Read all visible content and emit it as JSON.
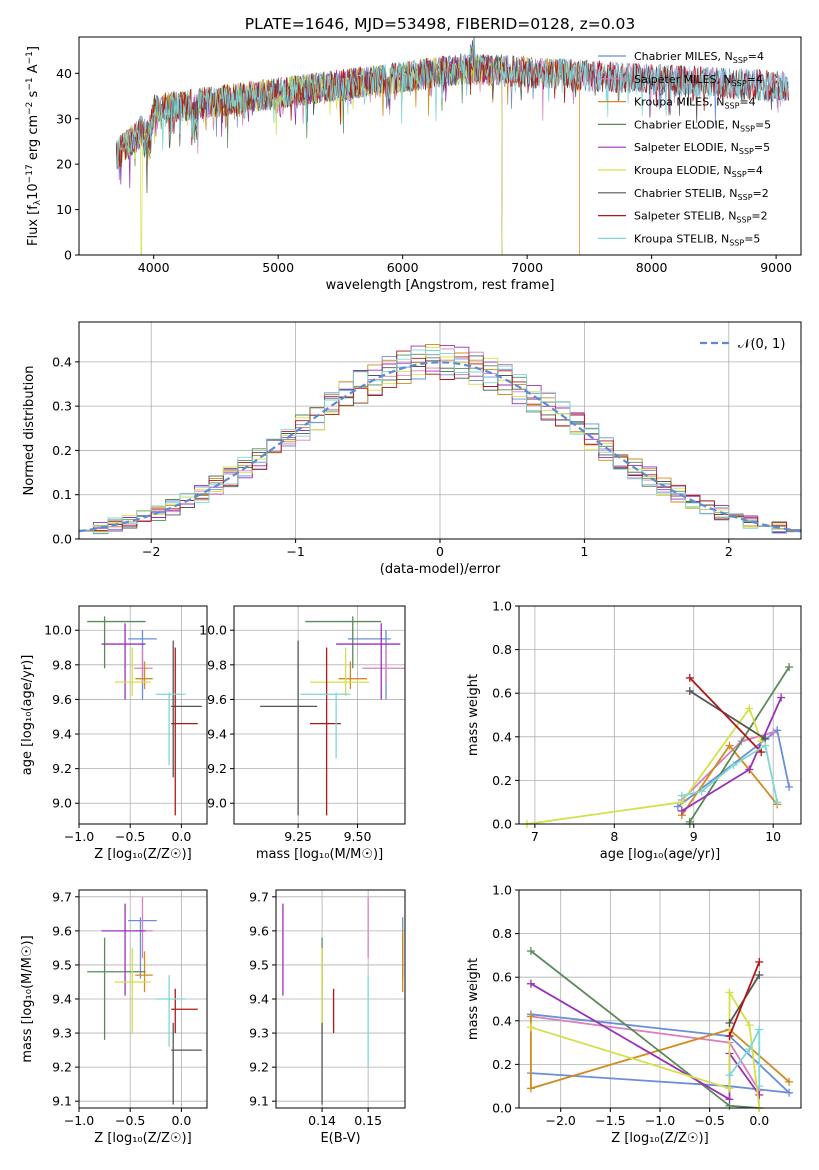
{
  "figure": {
    "title": "PLATE=1646, MJD=53498, FIBERID=0128, z=0.03"
  },
  "chart_data": [
    {
      "id": "spectrum",
      "type": "line",
      "xlabel": "wavelength [Angstrom, rest frame]",
      "ylabel_pre": "Flux [f",
      "ylabel_sub": "λ",
      "ylabel_mid": "10",
      "ylabel_sup1": "−17",
      "ylabel_mid2": " erg cm",
      "ylabel_sup2": "−2",
      "ylabel_mid3": " s",
      "ylabel_sup3": "−1",
      "ylabel_mid4": " A",
      "ylabel_sup4": "−1",
      "ylabel_end": "]",
      "xlim": [
        3400,
        9200
      ],
      "ylim": [
        0,
        48
      ],
      "xticks": [
        4000,
        5000,
        6000,
        7000,
        8000,
        9000
      ],
      "yticks": [
        0,
        10,
        20,
        30,
        40
      ],
      "wave_range": [
        3700,
        9100
      ],
      "legend_loc": "upper-right",
      "series": [
        {
          "name": "Chabrier MILES, N",
          "sub": "SSP",
          "eq": "=4",
          "color": "#6a8fd8",
          "end": 9100,
          "dropout": null
        },
        {
          "name": "Salpeter MILES, N",
          "sub": "SSP",
          "eq": "=4",
          "color": "#d97fbf",
          "end": 9100,
          "dropout": null
        },
        {
          "name": "Kroupa MILES, N",
          "sub": "SSP",
          "eq": "=4",
          "color": "#d38a1e",
          "end": 7420,
          "dropout": null
        },
        {
          "name": "Chabrier ELODIE, N",
          "sub": "SSP",
          "eq": "=5",
          "color": "#5a8a5a",
          "end": 6800,
          "dropout": null
        },
        {
          "name": "Salpeter ELODIE, N",
          "sub": "SSP",
          "eq": "=5",
          "color": "#9b30b8",
          "end": 6800,
          "dropout": null
        },
        {
          "name": "Kroupa ELODIE, N",
          "sub": "SSP",
          "eq": "=4",
          "color": "#d4e04a",
          "end": 6800,
          "dropout": 3900
        },
        {
          "name": "Chabrier STELIB, N",
          "sub": "SSP",
          "eq": "=2",
          "color": "#555555",
          "end": 9100,
          "dropout": null
        },
        {
          "name": "Salpeter STELIB, N",
          "sub": "SSP",
          "eq": "=2",
          "color": "#b01818",
          "end": 9100,
          "dropout": null
        },
        {
          "name": "Kroupa STELIB, N",
          "sub": "SSP",
          "eq": "=5",
          "color": "#7fd6d6",
          "end": 9100,
          "dropout": null
        }
      ]
    },
    {
      "id": "residuals",
      "type": "bar",
      "xlabel": "(data-model)/error",
      "ylabel": "Normed distribution",
      "xlim": [
        -2.5,
        2.5
      ],
      "ylim": [
        0,
        0.49
      ],
      "xticks": [
        -2,
        -1,
        0,
        1,
        2
      ],
      "yticks": [
        0.0,
        0.1,
        0.2,
        0.3,
        0.4
      ],
      "grid": true,
      "bin_width": 0.1,
      "reference_curve": {
        "name": "𝒩(0, 1)",
        "mean": 0,
        "sigma": 1,
        "color": "#5b8bd5",
        "style": "dashed"
      },
      "colors": [
        "#6a8fd8",
        "#d97fbf",
        "#d38a1e",
        "#5a8a5a",
        "#9b30b8",
        "#d4e04a",
        "#555555",
        "#b01818",
        "#7fd6d6"
      ]
    },
    {
      "id": "age-vs-Z",
      "type": "scatter",
      "xlabel": "Z [log₁₀(Z/Z☉)]",
      "ylabel": "age  [log₁₀(age/yr)]",
      "xlim": [
        -1.0,
        0.25
      ],
      "ylim": [
        8.88,
        10.14
      ],
      "xticks": [
        -1.0,
        -0.5,
        0.0
      ],
      "xticklabels": [
        "−1.0",
        "−0.5",
        "0.0"
      ],
      "yticks": [
        9.0,
        9.2,
        9.4,
        9.6,
        9.8,
        10.0
      ],
      "grid": true,
      "points": [
        {
          "color": "#6a8fd8",
          "x": -0.38,
          "y": 9.95,
          "x_lo": -0.52,
          "x_hi": -0.24,
          "y_lo": 9.6,
          "y_hi": 10.0
        },
        {
          "color": "#d97fbf",
          "x": -0.38,
          "y": 9.78,
          "x_lo": -0.46,
          "x_hi": -0.28,
          "y_lo": 9.7,
          "y_hi": 9.9
        },
        {
          "color": "#d38a1e",
          "x": -0.36,
          "y": 9.72,
          "x_lo": -0.45,
          "x_hi": -0.28,
          "y_lo": 9.66,
          "y_hi": 9.82
        },
        {
          "color": "#5a8a5a",
          "x": -0.75,
          "y": 10.05,
          "x_lo": -0.92,
          "x_hi": -0.35,
          "y_lo": 9.78,
          "y_hi": 10.08
        },
        {
          "color": "#9b30b8",
          "x": -0.55,
          "y": 9.92,
          "x_lo": -0.78,
          "x_hi": -0.35,
          "y_lo": 9.6,
          "y_hi": 10.04
        },
        {
          "color": "#d4e04a",
          "x": -0.48,
          "y": 9.7,
          "x_lo": -0.65,
          "x_hi": -0.3,
          "y_lo": 9.62,
          "y_hi": 9.9
        },
        {
          "color": "#555555",
          "x": -0.08,
          "y": 9.56,
          "x_lo": -0.1,
          "x_hi": 0.2,
          "y_lo": 9.15,
          "y_hi": 9.94
        },
        {
          "color": "#b01818",
          "x": -0.06,
          "y": 9.46,
          "x_lo": -0.1,
          "x_hi": 0.16,
          "y_lo": 8.93,
          "y_hi": 9.9
        },
        {
          "color": "#7fd6d6",
          "x": -0.12,
          "y": 9.63,
          "x_lo": -0.25,
          "x_hi": 0.04,
          "y_lo": 9.22,
          "y_hi": 9.64
        }
      ]
    },
    {
      "id": "age-vs-mass",
      "type": "scatter",
      "xlabel": "mass [log₁₀(M/M☉)]",
      "ylabel": "",
      "xlim": [
        8.98,
        9.7
      ],
      "ylim": [
        8.88,
        10.14
      ],
      "xticks": [
        9.25,
        9.5
      ],
      "xticklabels": [
        "9.25",
        "9.50"
      ],
      "yticks": [
        9.0,
        9.2,
        9.4,
        9.6,
        9.8,
        10.0
      ],
      "grid": true,
      "points": [
        {
          "color": "#6a8fd8",
          "x": 9.62,
          "y": 9.95,
          "x_lo": 9.46,
          "x_hi": 9.64,
          "y_lo": 9.6,
          "y_hi": 10.0
        },
        {
          "color": "#d97fbf",
          "x": 9.62,
          "y": 9.78,
          "x_lo": 9.52,
          "x_hi": 9.7,
          "y_lo": 9.7,
          "y_hi": 9.9
        },
        {
          "color": "#d38a1e",
          "x": 9.47,
          "y": 9.72,
          "x_lo": 9.42,
          "x_hi": 9.54,
          "y_lo": 9.66,
          "y_hi": 9.82
        },
        {
          "color": "#5a8a5a",
          "x": 9.48,
          "y": 10.05,
          "x_lo": 9.28,
          "x_hi": 9.6,
          "y_lo": 9.78,
          "y_hi": 10.08
        },
        {
          "color": "#9b30b8",
          "x": 9.6,
          "y": 9.92,
          "x_lo": 9.41,
          "x_hi": 9.68,
          "y_lo": 9.6,
          "y_hi": 10.04
        },
        {
          "color": "#d4e04a",
          "x": 9.45,
          "y": 9.7,
          "x_lo": 9.3,
          "x_hi": 9.55,
          "y_lo": 9.62,
          "y_hi": 9.9
        },
        {
          "color": "#555555",
          "x": 9.25,
          "y": 9.56,
          "x_lo": 9.09,
          "x_hi": 9.33,
          "y_lo": 8.93,
          "y_hi": 9.94
        },
        {
          "color": "#b01818",
          "x": 9.37,
          "y": 9.46,
          "x_lo": 9.3,
          "x_hi": 9.43,
          "y_lo": 8.93,
          "y_hi": 9.9
        },
        {
          "color": "#7fd6d6",
          "x": 9.41,
          "y": 9.63,
          "x_lo": 9.26,
          "x_hi": 9.47,
          "y_lo": 9.26,
          "y_hi": 9.64
        }
      ]
    },
    {
      "id": "weight-vs-age",
      "type": "line",
      "xlabel": "age  [log₁₀(age/yr)]",
      "ylabel": "mass weight",
      "xlim": [
        6.8,
        10.35
      ],
      "ylim": [
        0.0,
        1.0
      ],
      "xticks": [
        7,
        8,
        9,
        10
      ],
      "yticks": [
        0.0,
        0.2,
        0.4,
        0.6,
        0.8,
        1.0
      ],
      "grid": true,
      "series": [
        {
          "color": "#6a8fd8",
          "x": [
            8.8,
            10.05,
            10.2
          ],
          "y": [
            0.08,
            0.43,
            0.17
          ]
        },
        {
          "color": "#d97fbf",
          "x": [
            8.85,
            9.6,
            10.0
          ],
          "y": [
            0.11,
            0.38,
            0.42
          ]
        },
        {
          "color": "#d38a1e",
          "x": [
            8.85,
            9.45,
            10.05
          ],
          "y": [
            0.04,
            0.36,
            0.09
          ]
        },
        {
          "color": "#5a8a5a",
          "x": [
            8.95,
            8.95,
            10.2
          ],
          "y": [
            0.0,
            0.01,
            0.72
          ]
        },
        {
          "color": "#9b30b8",
          "x": [
            8.85,
            9.7,
            10.1
          ],
          "y": [
            0.06,
            0.25,
            0.58
          ]
        },
        {
          "color": "#d4e04a",
          "x": [
            6.9,
            8.85,
            9.7,
            9.85
          ],
          "y": [
            0.0,
            0.1,
            0.53,
            0.38
          ]
        },
        {
          "color": "#555555",
          "x": [
            8.95,
            9.9
          ],
          "y": [
            0.61,
            0.39
          ]
        },
        {
          "color": "#b01818",
          "x": [
            8.95,
            9.85
          ],
          "y": [
            0.67,
            0.33
          ]
        },
        {
          "color": "#7fd6d6",
          "x": [
            8.85,
            9.1,
            9.5,
            9.9,
            10.05
          ],
          "y": [
            0.13,
            0.15,
            0.27,
            0.36,
            0.1
          ]
        }
      ]
    },
    {
      "id": "mass-vs-Z",
      "type": "scatter",
      "xlabel": "Z [log₁₀(Z/Z☉)]",
      "ylabel": "mass [log₁₀(M/M☉)]",
      "xlim": [
        -1.0,
        0.25
      ],
      "ylim": [
        9.08,
        9.72
      ],
      "xticks": [
        -1.0,
        -0.5,
        0.0
      ],
      "xticklabels": [
        "−1.0",
        "−0.5",
        "0.0"
      ],
      "yticks": [
        9.1,
        9.2,
        9.3,
        9.4,
        9.5,
        9.6,
        9.7
      ],
      "grid": true,
      "points": [
        {
          "color": "#6a8fd8",
          "x": -0.4,
          "y": 9.63,
          "x_lo": -0.52,
          "x_hi": -0.24,
          "y_lo": 9.46,
          "y_hi": 9.64
        },
        {
          "color": "#d97fbf",
          "x": -0.38,
          "y": 9.6,
          "x_lo": -0.46,
          "x_hi": -0.28,
          "y_lo": 9.52,
          "y_hi": 9.7
        },
        {
          "color": "#d38a1e",
          "x": -0.36,
          "y": 9.47,
          "x_lo": -0.45,
          "x_hi": -0.28,
          "y_lo": 9.42,
          "y_hi": 9.54
        },
        {
          "color": "#5a8a5a",
          "x": -0.75,
          "y": 9.48,
          "x_lo": -0.92,
          "x_hi": -0.35,
          "y_lo": 9.28,
          "y_hi": 9.58
        },
        {
          "color": "#9b30b8",
          "x": -0.55,
          "y": 9.6,
          "x_lo": -0.78,
          "x_hi": -0.35,
          "y_lo": 9.41,
          "y_hi": 9.68
        },
        {
          "color": "#d4e04a",
          "x": -0.48,
          "y": 9.45,
          "x_lo": -0.65,
          "x_hi": -0.3,
          "y_lo": 9.3,
          "y_hi": 9.55
        },
        {
          "color": "#555555",
          "x": -0.08,
          "y": 9.25,
          "x_lo": -0.1,
          "x_hi": 0.2,
          "y_lo": 9.09,
          "y_hi": 9.33
        },
        {
          "color": "#b01818",
          "x": -0.06,
          "y": 9.37,
          "x_lo": -0.1,
          "x_hi": 0.16,
          "y_lo": 9.3,
          "y_hi": 9.43
        },
        {
          "color": "#7fd6d6",
          "x": -0.12,
          "y": 9.4,
          "x_lo": -0.25,
          "x_hi": 0.04,
          "y_lo": 9.26,
          "y_hi": 9.47
        }
      ]
    },
    {
      "id": "mass-vs-ebv",
      "type": "scatter",
      "xlabel": "E(B-V)",
      "ylabel": "",
      "xlim": [
        0.13,
        0.158
      ],
      "ylim": [
        9.08,
        9.72
      ],
      "xticks": [
        0.14,
        0.15
      ],
      "xticklabels": [
        "0.14",
        "0.15"
      ],
      "yticks": [
        9.1,
        9.2,
        9.3,
        9.4,
        9.5,
        9.6,
        9.7
      ],
      "grid": true,
      "points": [
        {
          "color": "#6a8fd8",
          "x": 0.1575,
          "y": 9.55,
          "y_lo": 9.46,
          "y_hi": 9.64
        },
        {
          "color": "#d97fbf",
          "x": 0.15,
          "y": 9.6,
          "y_lo": 9.52,
          "y_hi": 9.7
        },
        {
          "color": "#d38a1e",
          "x": 0.1575,
          "y": 9.5,
          "y_lo": 9.42,
          "y_hi": 9.6
        },
        {
          "color": "#5a8a5a",
          "x": 0.14,
          "y": 9.45,
          "y_lo": 9.33,
          "y_hi": 9.58
        },
        {
          "color": "#9b30b8",
          "x": 0.1315,
          "y": 9.55,
          "y_lo": 9.41,
          "y_hi": 9.68
        },
        {
          "color": "#d4e04a",
          "x": 0.14,
          "y": 9.45,
          "y_lo": 9.3,
          "y_hi": 9.55
        },
        {
          "color": "#555555",
          "x": 0.14,
          "y": 9.2,
          "y_lo": 9.09,
          "y_hi": 9.33
        },
        {
          "color": "#b01818",
          "x": 0.1425,
          "y": 9.37,
          "y_lo": 9.3,
          "y_hi": 9.43
        },
        {
          "color": "#7fd6d6",
          "x": 0.15,
          "y": 9.35,
          "y_lo": 9.2,
          "y_hi": 9.47
        }
      ]
    },
    {
      "id": "weight-vs-Z",
      "type": "line",
      "xlabel": "Z [log₁₀(Z/Z☉)]",
      "ylabel": "mass weight",
      "xlim": [
        -2.42,
        0.42
      ],
      "ylim": [
        0.0,
        1.0
      ],
      "xticks": [
        -2.0,
        -1.5,
        -1.0,
        -0.5,
        0.0
      ],
      "xticklabels": [
        "−2.0",
        "−1.5",
        "−1.0",
        "−0.5",
        "0.0"
      ],
      "yticks": [
        0.0,
        0.2,
        0.4,
        0.6,
        0.8,
        1.0
      ],
      "grid": true,
      "series": [
        {
          "color": "#6a8fd8",
          "x": [
            -2.3,
            -0.3,
            0.3,
            -0.3,
            -2.3
          ],
          "y": [
            0.43,
            0.33,
            0.07,
            0.1,
            0.16
          ]
        },
        {
          "color": "#d97fbf",
          "x": [
            -2.3,
            -0.3,
            0.0
          ],
          "y": [
            0.42,
            0.3,
            0.08
          ]
        },
        {
          "color": "#d38a1e",
          "x": [
            -2.3,
            -2.3,
            -0.3,
            0.3
          ],
          "y": [
            0.42,
            0.09,
            0.36,
            0.12
          ]
        },
        {
          "color": "#5a8a5a",
          "x": [
            -2.3,
            -0.3,
            0.0
          ],
          "y": [
            0.72,
            0.01,
            0.0
          ]
        },
        {
          "color": "#9b30b8",
          "x": [
            -2.3,
            -0.3,
            -0.3,
            0.0
          ],
          "y": [
            0.57,
            0.04,
            0.25,
            0.06
          ]
        },
        {
          "color": "#d4e04a",
          "x": [
            -2.3,
            -0.3,
            -0.3,
            -0.1,
            0.0
          ],
          "y": [
            0.37,
            0.09,
            0.53,
            0.38,
            0.0
          ]
        },
        {
          "color": "#555555",
          "x": [
            -0.3,
            0.0
          ],
          "y": [
            0.39,
            0.61
          ]
        },
        {
          "color": "#b01818",
          "x": [
            -0.3,
            0.0
          ],
          "y": [
            0.33,
            0.67
          ]
        },
        {
          "color": "#7fd6d6",
          "x": [
            -0.3,
            -0.1,
            0.0,
            0.0
          ],
          "y": [
            0.15,
            0.27,
            0.36,
            0.1
          ]
        }
      ]
    }
  ]
}
